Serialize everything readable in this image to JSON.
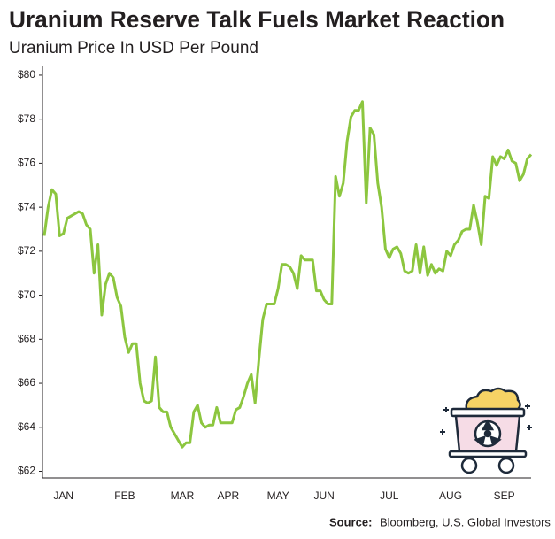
{
  "chart_data": {
    "type": "line",
    "title": "Uranium Reserve Talk Fuels Market Reaction",
    "subtitle": "Uranium Price In USD Per Pound",
    "source_label": "Source:",
    "source": "Bloomberg, U.S. Global Investors",
    "categories": [
      null,
      null,
      null,
      null,
      null,
      "JAN",
      null,
      null,
      null,
      null,
      null,
      null,
      null,
      null,
      null,
      null,
      null,
      null,
      null,
      null,
      null,
      "FEB",
      null,
      null,
      null,
      null,
      null,
      null,
      null,
      null,
      null,
      null,
      null,
      null,
      null,
      null,
      "MAR",
      null,
      null,
      null,
      null,
      null,
      null,
      null,
      null,
      null,
      null,
      null,
      "APR",
      null,
      null,
      null,
      null,
      null,
      null,
      null,
      null,
      null,
      null,
      null,
      null,
      "MAY",
      null,
      null,
      null,
      null,
      null,
      null,
      null,
      null,
      null,
      null,
      null,
      "JUN",
      null,
      null,
      null,
      null,
      null,
      null,
      null,
      null,
      null,
      null,
      null,
      null,
      null,
      null,
      null,
      null,
      "JUL",
      null,
      null,
      null,
      null,
      null,
      null,
      null,
      null,
      null,
      null,
      null,
      null,
      null,
      null,
      null,
      "AUG",
      null,
      null,
      null,
      null,
      null,
      null,
      null,
      null,
      null,
      null,
      null,
      null,
      null,
      "SEP",
      null,
      null,
      null,
      null,
      null,
      null,
      null
    ],
    "series": [
      {
        "name": "Uranium Price",
        "color": "#8cc63f",
        "values": [
          72.7,
          74.0,
          74.8,
          74.6,
          72.7,
          72.8,
          73.5,
          73.6,
          73.7,
          73.8,
          73.7,
          73.2,
          73.0,
          71.0,
          72.3,
          69.1,
          70.5,
          71.0,
          70.8,
          69.9,
          69.5,
          68.1,
          67.4,
          67.8,
          67.8,
          66.0,
          65.2,
          65.1,
          65.2,
          67.2,
          64.9,
          64.7,
          64.7,
          64.0,
          63.7,
          63.4,
          63.1,
          63.3,
          63.3,
          64.7,
          65.0,
          64.2,
          64.0,
          64.1,
          64.1,
          64.9,
          64.2,
          64.2,
          64.2,
          64.2,
          64.8,
          64.9,
          65.4,
          66.0,
          66.4,
          65.1,
          67.1,
          68.9,
          69.6,
          69.6,
          69.6,
          70.3,
          71.4,
          71.4,
          71.3,
          71.0,
          70.3,
          71.8,
          71.6,
          71.6,
          71.6,
          70.2,
          70.2,
          69.8,
          69.6,
          69.6,
          75.4,
          74.5,
          75.1,
          77.0,
          78.1,
          78.4,
          78.4,
          78.8,
          74.2,
          77.6,
          77.3,
          75.1,
          74.0,
          72.1,
          71.7,
          72.1,
          72.2,
          71.9,
          71.1,
          71.0,
          71.1,
          72.3,
          71.0,
          72.2,
          70.9,
          71.4,
          71.0,
          71.2,
          71.1,
          72.0,
          71.8,
          72.3,
          72.5,
          72.9,
          73.0,
          73.0,
          74.1,
          73.3,
          72.3,
          74.5,
          74.4,
          76.3,
          75.9,
          76.3,
          76.2,
          76.6,
          76.1,
          76.0,
          75.2,
          75.5,
          76.2,
          76.4
        ]
      }
    ],
    "ylim": [
      61.9,
      80.4
    ],
    "yticks": [
      {
        "value": 62,
        "label": "$62"
      },
      {
        "value": 64,
        "label": "$64"
      },
      {
        "value": 66,
        "label": "$66"
      },
      {
        "value": 68,
        "label": "$68"
      },
      {
        "value": 70,
        "label": "$70"
      },
      {
        "value": 72,
        "label": "$72"
      },
      {
        "value": 74,
        "label": "$74"
      },
      {
        "value": 76,
        "label": "$76"
      },
      {
        "value": 78,
        "label": "$78"
      },
      {
        "value": 80,
        "label": "$80"
      }
    ],
    "grid": false
  }
}
